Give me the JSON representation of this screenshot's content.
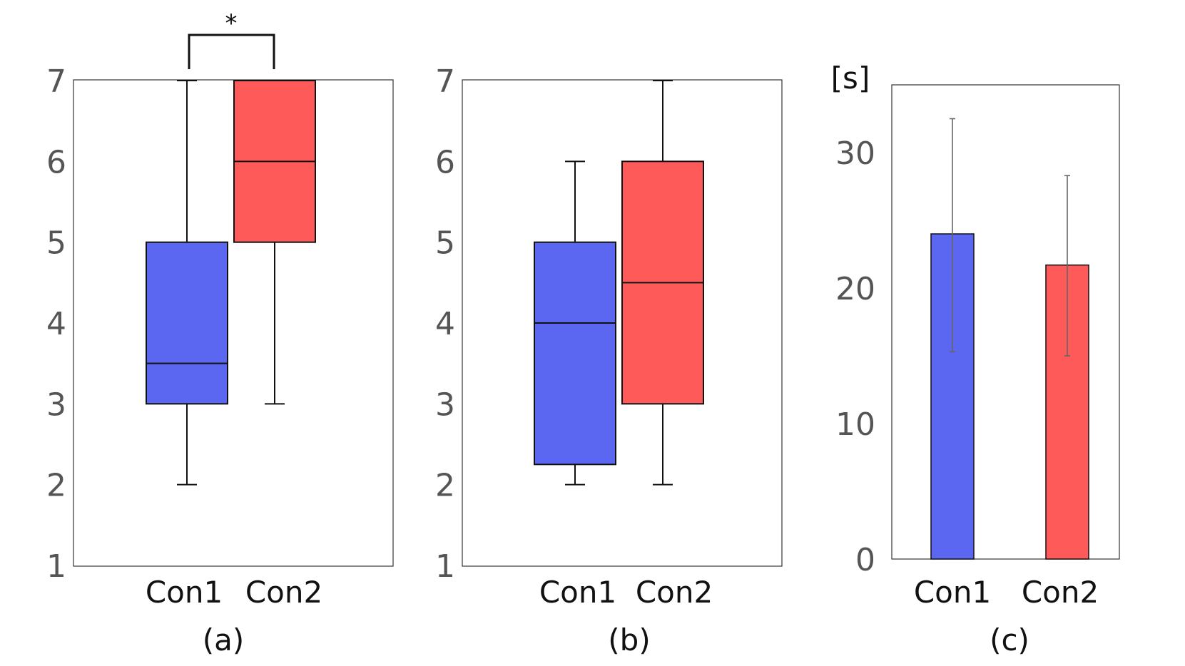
{
  "chart_data": [
    {
      "panel": "(a)",
      "type": "box",
      "ylim": [
        1,
        7
      ],
      "yticks": [
        "1",
        "2",
        "3",
        "4",
        "5",
        "6",
        "7"
      ],
      "categories": [
        "Con1",
        "Con2"
      ],
      "boxes": [
        {
          "name": "Con1",
          "min": 2,
          "q1": 3,
          "median": 3.5,
          "q3": 5,
          "max": 7,
          "color": "#5b67f0"
        },
        {
          "name": "Con2",
          "min": 3,
          "q1": 5,
          "median": 6,
          "q3": 7,
          "max": 7,
          "color": "#ff5a5a"
        }
      ],
      "annotation": "*"
    },
    {
      "panel": "(b)",
      "type": "box",
      "ylim": [
        1,
        7
      ],
      "yticks": [
        "1",
        "2",
        "3",
        "4",
        "5",
        "6",
        "7"
      ],
      "categories": [
        "Con1",
        "Con2"
      ],
      "boxes": [
        {
          "name": "Con1",
          "min": 2,
          "q1": 2.25,
          "median": 4,
          "q3": 5,
          "max": 6,
          "color": "#5b67f0"
        },
        {
          "name": "Con2",
          "min": 2,
          "q1": 3,
          "median": 4.5,
          "q3": 6,
          "max": 7,
          "color": "#ff5a5a"
        }
      ]
    },
    {
      "panel": "(c)",
      "type": "bar",
      "ylim": [
        0,
        35
      ],
      "yticks": [
        "0",
        "10",
        "20",
        "30"
      ],
      "unit": "[s]",
      "categories": [
        "Con1",
        "Con2"
      ],
      "values": [
        24,
        21.7
      ],
      "error_low": [
        15.3,
        15
      ],
      "error_high": [
        32.5,
        28.3
      ],
      "colors": [
        "#5b67f0",
        "#ff5a5a"
      ]
    }
  ]
}
